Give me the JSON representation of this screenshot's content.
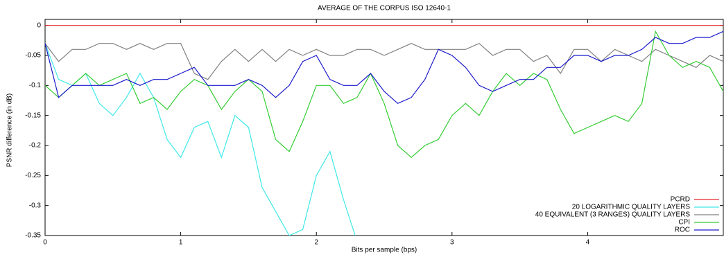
{
  "chart_data": {
    "type": "line",
    "title": "AVERAGE OF THE CORPUS ISO 12640-1",
    "xlabel": "Bits per sample (bps)",
    "ylabel": "PSNR difference (in dB)",
    "x": [
      0,
      0.1,
      0.2,
      0.3,
      0.4,
      0.5,
      0.6,
      0.7,
      0.8,
      0.9,
      1,
      1.1,
      1.2,
      1.3,
      1.4,
      1.5,
      1.6,
      1.7,
      1.8,
      1.9,
      2,
      2.1,
      2.2,
      2.3,
      2.4,
      2.5,
      2.6,
      2.7,
      2.8,
      2.9,
      3,
      3.1,
      3.2,
      3.3,
      3.4,
      3.5,
      3.6,
      3.7,
      3.8,
      3.9,
      4,
      4.1,
      4.2,
      4.3,
      4.4,
      4.5,
      4.6,
      4.7,
      4.8,
      4.9,
      5
    ],
    "xlim": [
      0,
      5
    ],
    "xticks": [
      0,
      1,
      2,
      3,
      4
    ],
    "ylim": [
      -0.35,
      0.01
    ],
    "yticks": [
      0,
      -0.05,
      -0.1,
      -0.15,
      -0.2,
      -0.25,
      -0.3,
      -0.35
    ],
    "legend": "lower right",
    "series": [
      {
        "name": "PCRD",
        "color": "#e8242a",
        "values": [
          0,
          0,
          0,
          0,
          0,
          0,
          0,
          0,
          0,
          0,
          0,
          0,
          0,
          0,
          0,
          0,
          0,
          0,
          0,
          0,
          0,
          0,
          0,
          0,
          0,
          0,
          0,
          0,
          0,
          0,
          0,
          0,
          0,
          0,
          0,
          0,
          0,
          0,
          0,
          0,
          0,
          0,
          0,
          0,
          0,
          0,
          0,
          0,
          0,
          0,
          0
        ]
      },
      {
        "name": "20 LOGARITHMIC QUALITY LAYERS",
        "color": "#3ee8e8",
        "values": [
          -0.03,
          -0.09,
          -0.1,
          -0.08,
          -0.13,
          -0.15,
          -0.12,
          -0.08,
          -0.12,
          -0.19,
          -0.22,
          -0.17,
          -0.16,
          -0.22,
          -0.15,
          -0.17,
          -0.27,
          -0.31,
          -0.35,
          -0.34,
          -0.25,
          -0.21,
          -0.29,
          -0.36,
          null,
          null,
          null,
          null,
          null,
          null,
          null,
          null,
          null,
          null,
          null,
          null,
          null,
          null,
          null,
          null,
          null,
          null,
          null,
          null,
          null,
          null,
          null,
          null,
          null,
          null,
          null
        ]
      },
      {
        "name": "40 EQUIVALENT (3 RANGES) QUALITY LAYERS",
        "color": "#808080",
        "values": [
          -0.03,
          -0.06,
          -0.04,
          -0.04,
          -0.03,
          -0.03,
          -0.04,
          -0.03,
          -0.04,
          -0.03,
          -0.03,
          -0.08,
          -0.09,
          -0.06,
          -0.04,
          -0.06,
          -0.04,
          -0.06,
          -0.04,
          -0.05,
          -0.04,
          -0.05,
          -0.05,
          -0.04,
          -0.04,
          -0.05,
          -0.04,
          -0.03,
          -0.04,
          -0.04,
          -0.04,
          -0.04,
          -0.03,
          -0.05,
          -0.04,
          -0.04,
          -0.06,
          -0.05,
          -0.08,
          -0.04,
          -0.04,
          -0.06,
          -0.04,
          -0.05,
          -0.06,
          -0.04,
          -0.05,
          -0.06,
          -0.07,
          -0.05,
          -0.06
        ]
      },
      {
        "name": "CPI",
        "color": "#33cc33",
        "values": [
          -0.1,
          -0.12,
          -0.1,
          -0.08,
          -0.1,
          -0.09,
          -0.08,
          -0.13,
          -0.12,
          -0.14,
          -0.11,
          -0.09,
          -0.1,
          -0.14,
          -0.11,
          -0.09,
          -0.11,
          -0.19,
          -0.21,
          -0.16,
          -0.1,
          -0.1,
          -0.13,
          -0.12,
          -0.08,
          -0.13,
          -0.2,
          -0.22,
          -0.2,
          -0.19,
          -0.15,
          -0.13,
          -0.15,
          -0.11,
          -0.08,
          -0.1,
          -0.08,
          -0.09,
          -0.14,
          -0.18,
          -0.17,
          -0.16,
          -0.15,
          -0.16,
          -0.13,
          -0.01,
          -0.05,
          -0.07,
          -0.06,
          -0.07,
          -0.11
        ]
      },
      {
        "name": "ROC",
        "color": "#1a1acc",
        "values": [
          -0.03,
          -0.12,
          -0.1,
          -0.1,
          -0.1,
          -0.1,
          -0.09,
          -0.1,
          -0.09,
          -0.09,
          -0.08,
          -0.07,
          -0.1,
          -0.1,
          -0.1,
          -0.09,
          -0.1,
          -0.12,
          -0.1,
          -0.06,
          -0.05,
          -0.09,
          -0.1,
          -0.1,
          -0.08,
          -0.11,
          -0.13,
          -0.12,
          -0.09,
          -0.04,
          -0.05,
          -0.07,
          -0.1,
          -0.11,
          -0.1,
          -0.09,
          -0.09,
          -0.07,
          -0.07,
          -0.05,
          -0.05,
          -0.06,
          -0.05,
          -0.05,
          -0.04,
          -0.02,
          -0.03,
          -0.03,
          -0.02,
          -0.02,
          -0.01
        ]
      }
    ]
  }
}
